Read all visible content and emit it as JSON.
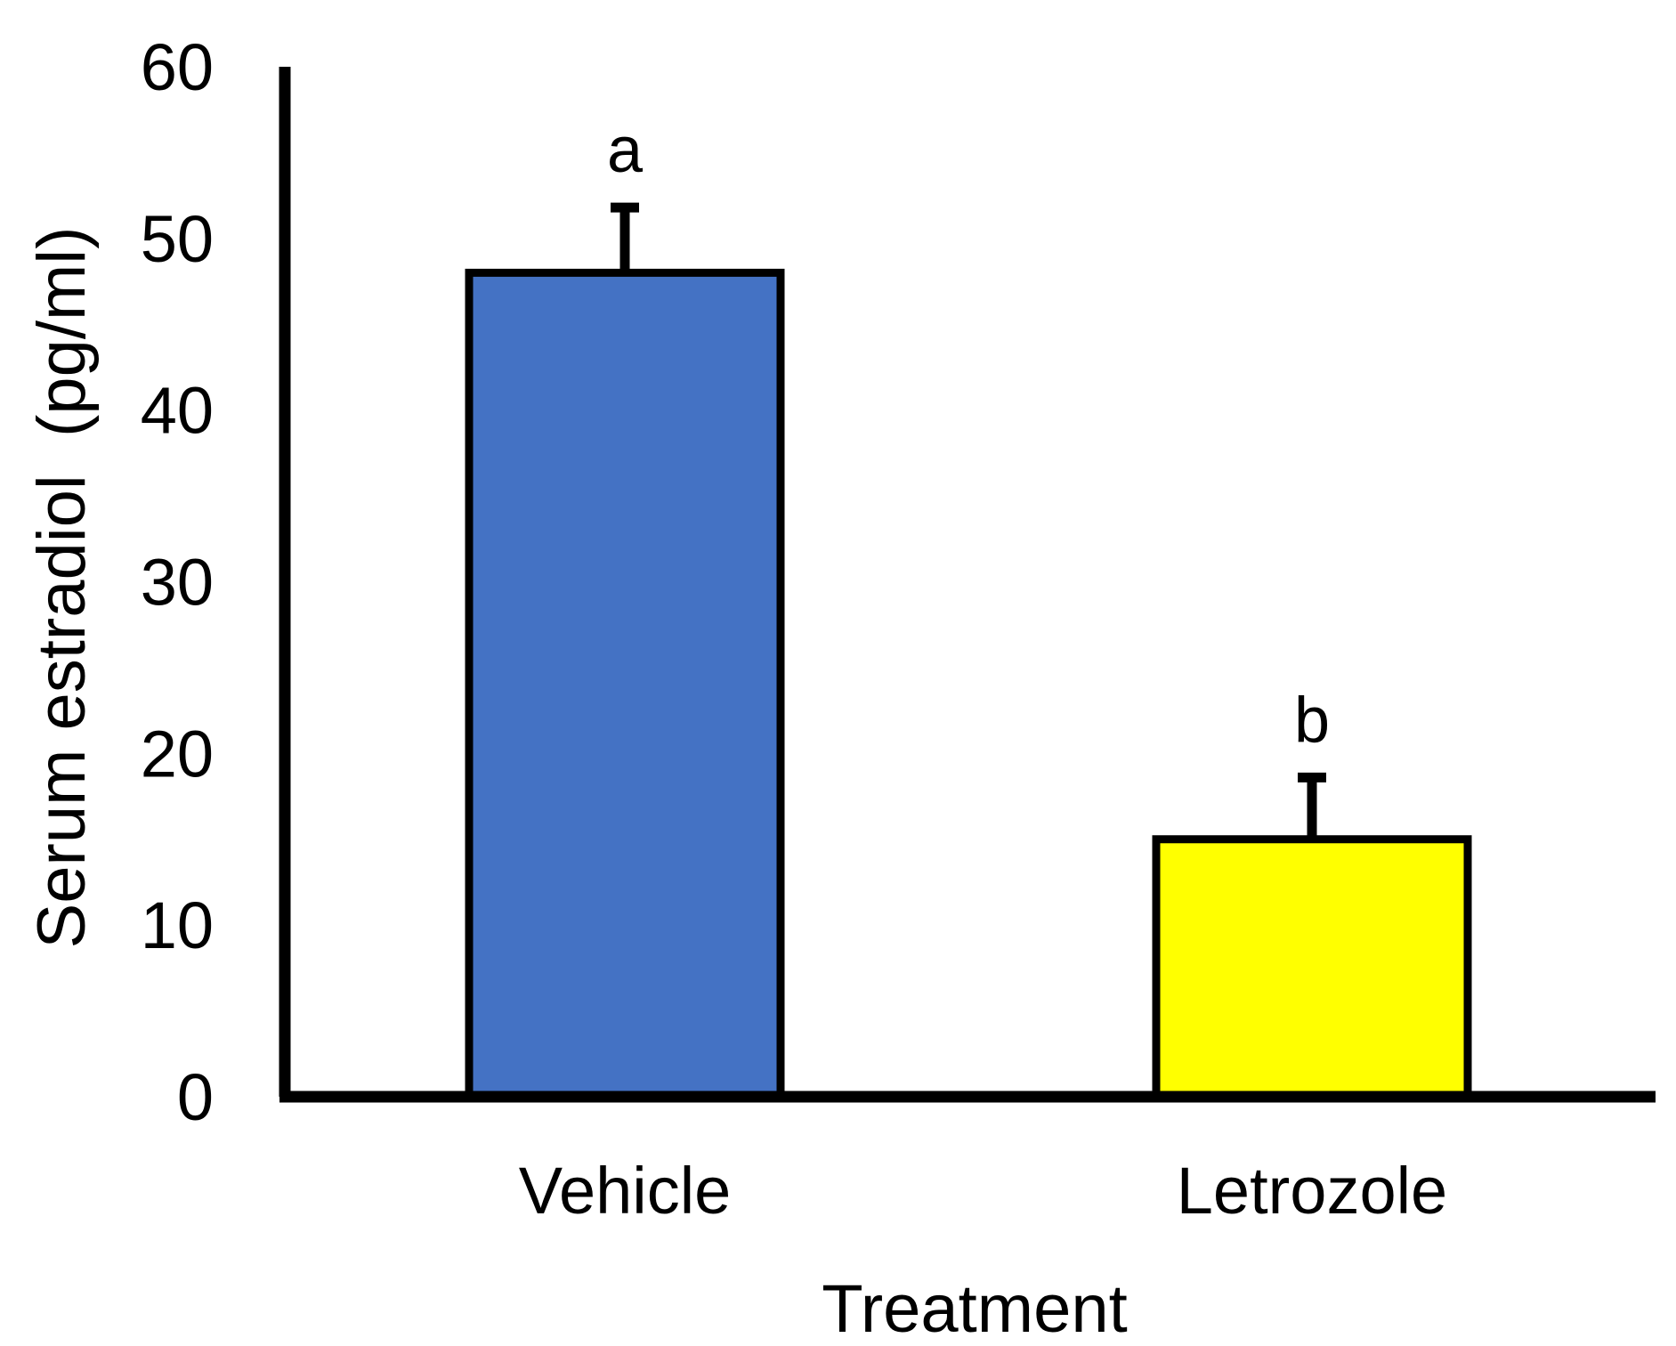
{
  "chart_data": {
    "type": "bar",
    "categories": [
      "Vehicle",
      "Letrozole"
    ],
    "values": [
      48,
      15
    ],
    "error_bars": [
      3.8,
      3.6
    ],
    "significance_letters": [
      "a",
      "b"
    ],
    "colors": [
      "#4472C4",
      "#FFFF00"
    ],
    "bar_edge_color": "#000000",
    "xlabel": "Treatment",
    "ylabel": "Serum estradiol  (pg/ml)",
    "ylim": [
      0,
      60
    ],
    "yticks": [
      "0",
      "10",
      "20",
      "30",
      "40",
      "50",
      "60"
    ],
    "grid": false,
    "legend": "none"
  }
}
